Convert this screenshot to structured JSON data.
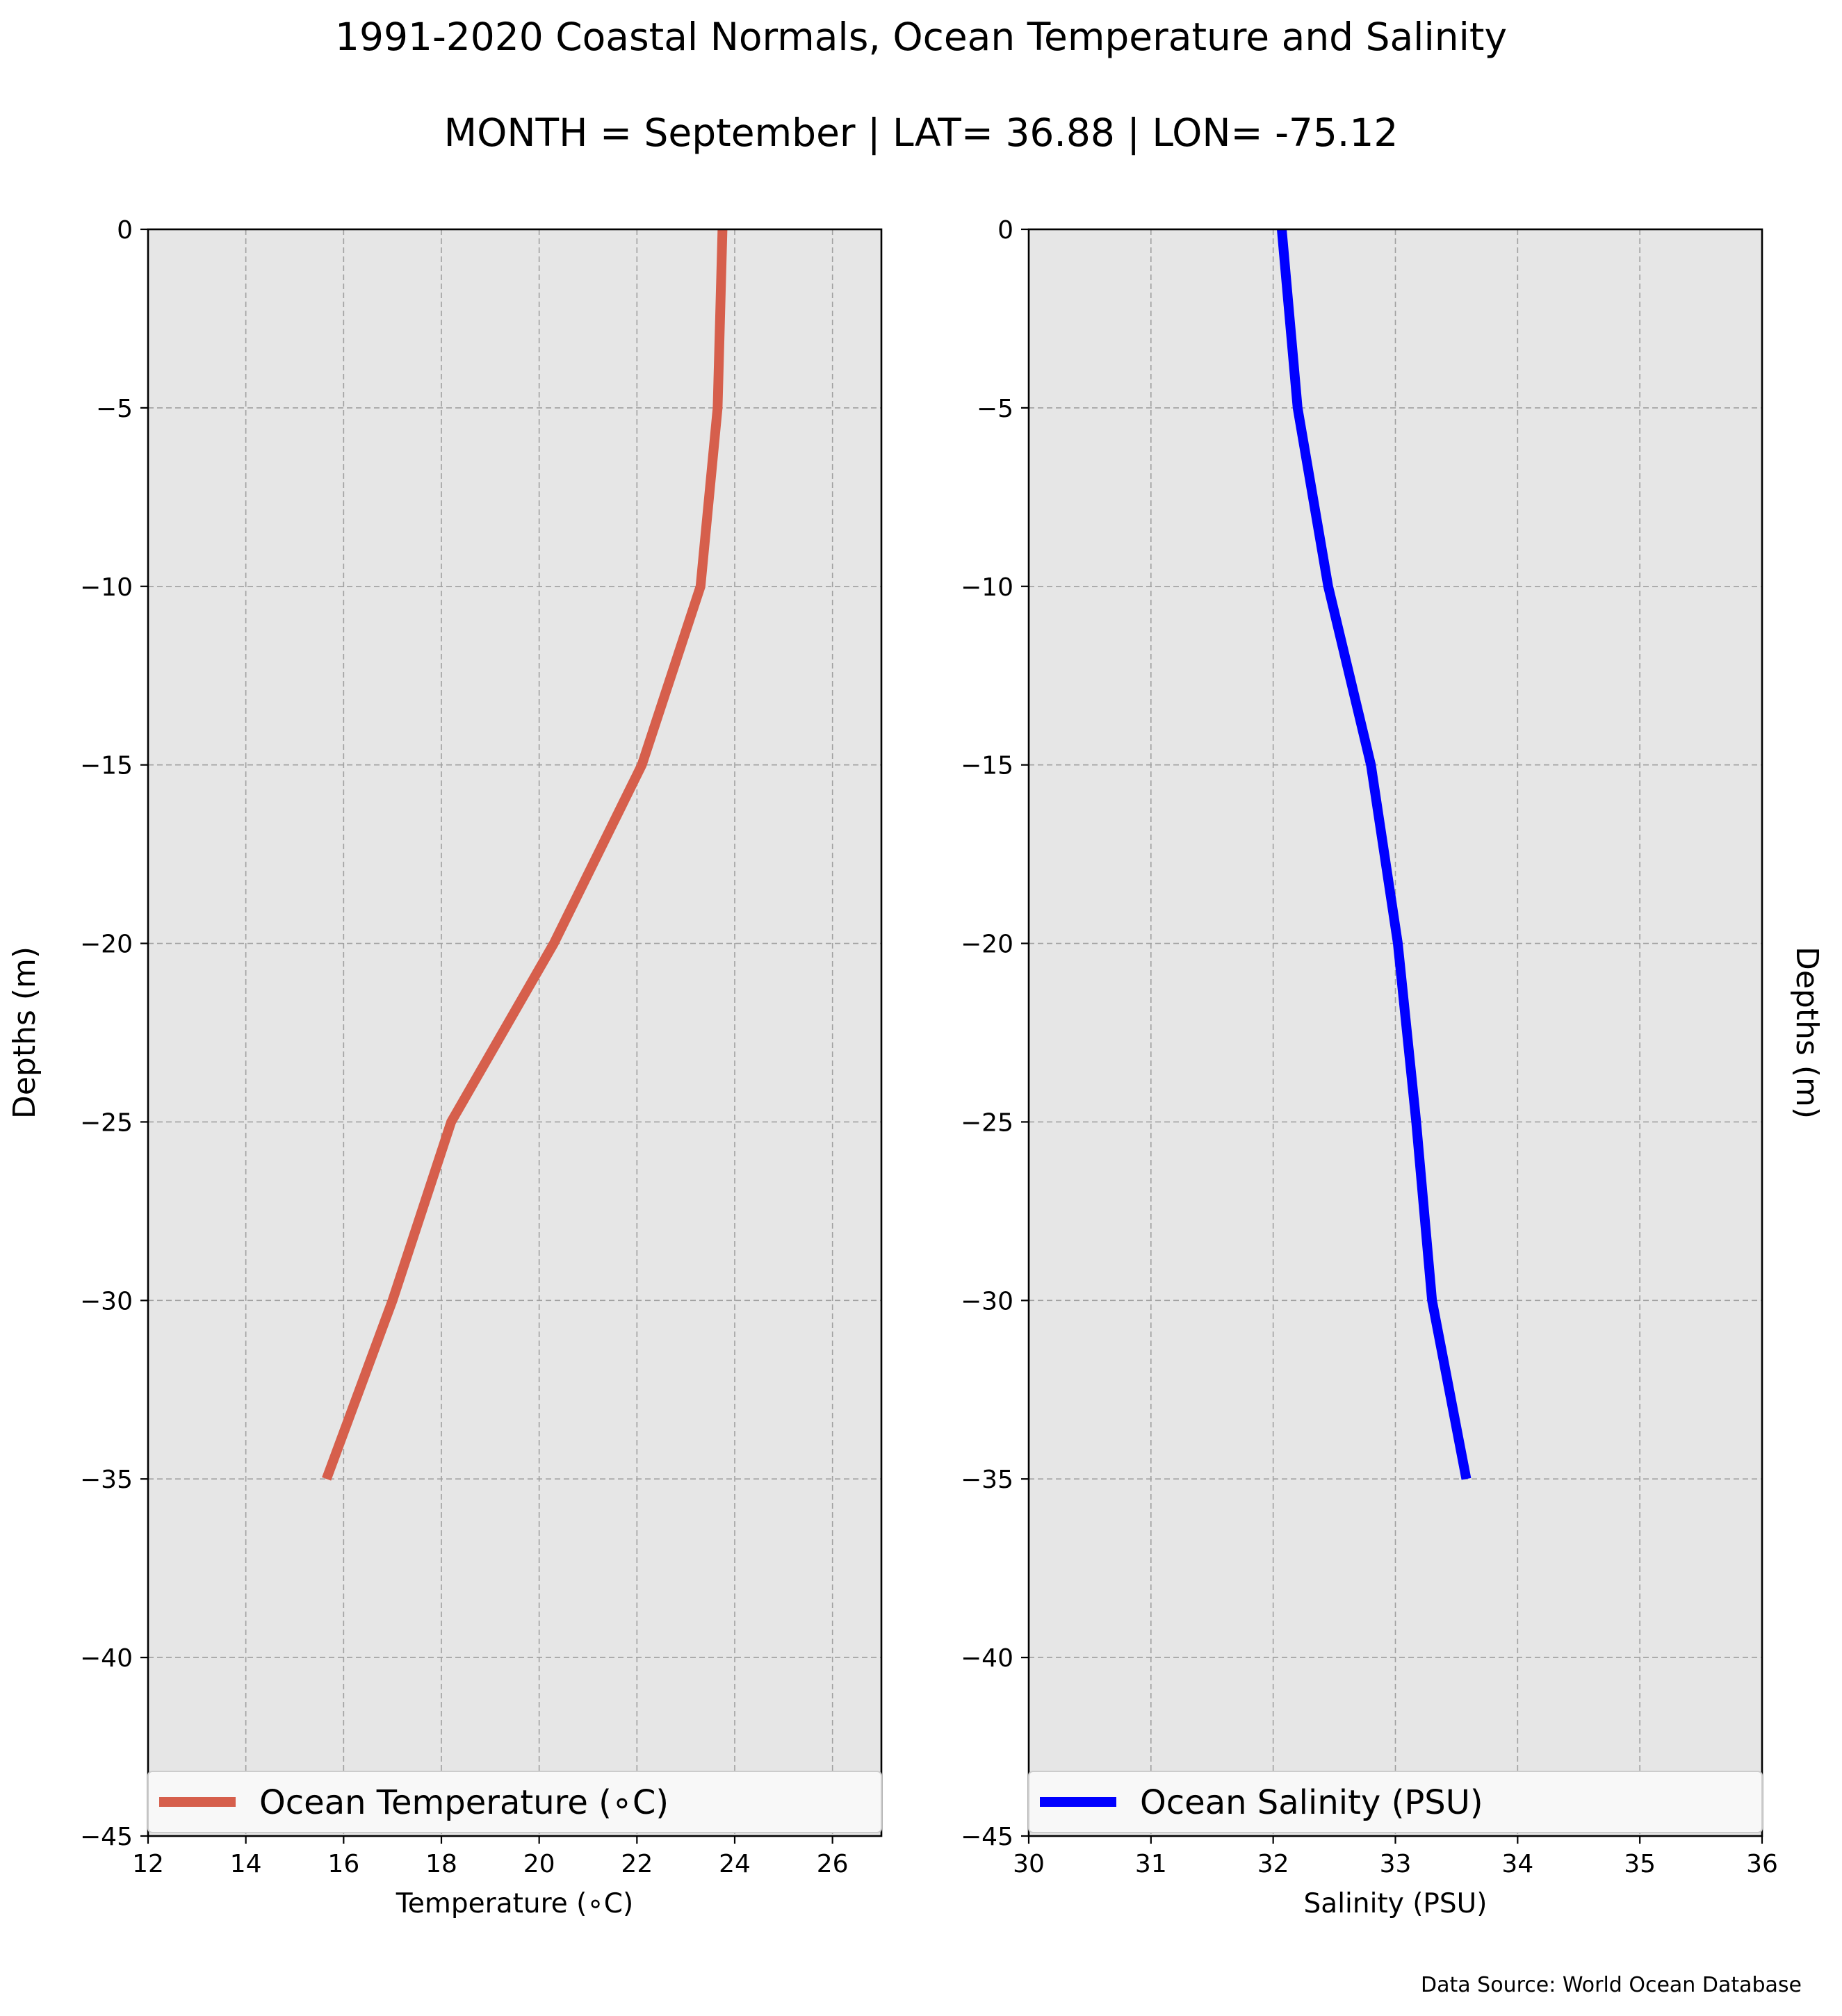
{
  "figure": {
    "title": "1991-2020 Coastal Normals, Ocean Temperature and Salinity",
    "subtitle": "MONTH = September | LAT= 36.88 | LON= -75.12",
    "source_note": "Data Source: World Ocean Database"
  },
  "chart_data": [
    {
      "type": "line",
      "xlabel": "Temperature (∘C)",
      "ylabel": "Depths (m)",
      "xlim": [
        12,
        27
      ],
      "ylim": [
        -45,
        0
      ],
      "xticks": [
        12,
        14,
        16,
        18,
        20,
        22,
        24,
        26
      ],
      "yticks": [
        0,
        -5,
        -10,
        -15,
        -20,
        -25,
        -30,
        -35,
        -40,
        -45
      ],
      "ytick_labels": [
        "0",
        "−5",
        "−10",
        "−15",
        "−20",
        "−25",
        "−30",
        "−35",
        "−40",
        "−45"
      ],
      "grid": true,
      "ylabel_side": "left",
      "legend_position": "lower center",
      "series": [
        {
          "name": "Ocean Temperature (∘C)",
          "color": "#d65f4c",
          "x": [
            23.75,
            23.65,
            23.3,
            22.1,
            20.3,
            18.2,
            17.0,
            15.65
          ],
          "y": [
            0,
            -5,
            -10,
            -15,
            -20,
            -25,
            -30,
            -35
          ]
        }
      ]
    },
    {
      "type": "line",
      "xlabel": "Salinity (PSU)",
      "ylabel": "Depths (m)",
      "xlim": [
        30,
        36
      ],
      "ylim": [
        -45,
        0
      ],
      "xticks": [
        30,
        31,
        32,
        33,
        34,
        35,
        36
      ],
      "yticks": [
        0,
        -5,
        -10,
        -15,
        -20,
        -25,
        -30,
        -35,
        -40,
        -45
      ],
      "ytick_labels": [
        "0",
        "−5",
        "−10",
        "−15",
        "−20",
        "−25",
        "−30",
        "−35",
        "−40",
        "−45"
      ],
      "grid": true,
      "ylabel_side": "right",
      "legend_position": "lower center",
      "series": [
        {
          "name": "Ocean Salinity (PSU)",
          "color": "#0000ff",
          "x": [
            32.07,
            32.2,
            32.45,
            32.8,
            33.02,
            33.17,
            33.3,
            33.58
          ],
          "y": [
            0,
            -5,
            -10,
            -15,
            -20,
            -25,
            -30,
            -35
          ]
        }
      ]
    }
  ],
  "style": {
    "axes_background": "#e6e6e6",
    "grid_color": "#a0a0a0",
    "legend_background": "#f8f8f8"
  }
}
